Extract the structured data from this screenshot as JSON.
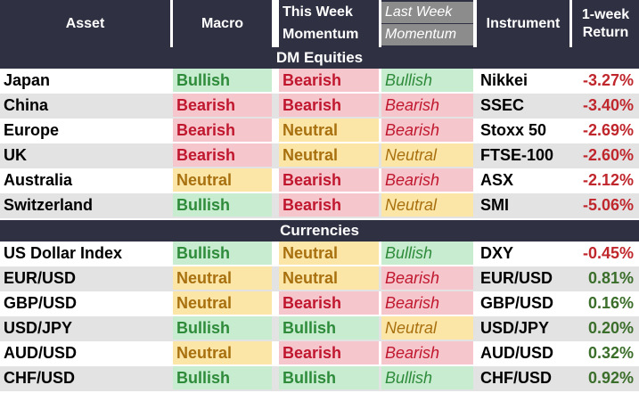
{
  "headers": {
    "asset": "Asset",
    "macro": "Macro",
    "this_week_1": "This Week",
    "this_week_2": "Momentum",
    "last_week_1": "Last Week",
    "last_week_2": "Momentum",
    "instrument": "Instrument",
    "return_1": "1-week",
    "return_2": "Return"
  },
  "sections": [
    {
      "title": "DM Equities",
      "rows": [
        {
          "asset": "Japan",
          "macro": "Bullish",
          "this_week": "Bearish",
          "last_week": "Bullish",
          "instrument": "Nikkei",
          "ret": "-3.27%"
        },
        {
          "asset": "China",
          "macro": "Bearish",
          "this_week": "Bearish",
          "last_week": "Bearish",
          "instrument": "SSEC",
          "ret": "-3.40%"
        },
        {
          "asset": "Europe",
          "macro": "Bearish",
          "this_week": "Neutral",
          "last_week": "Bearish",
          "instrument": "Stoxx 50",
          "ret": "-2.69%"
        },
        {
          "asset": "UK",
          "macro": "Bearish",
          "this_week": "Neutral",
          "last_week": "Neutral",
          "instrument": "FTSE-100",
          "ret": "-2.60%"
        },
        {
          "asset": "Australia",
          "macro": "Neutral",
          "this_week": "Bearish",
          "last_week": "Bearish",
          "instrument": "ASX",
          "ret": "-2.12%"
        },
        {
          "asset": "Switzerland",
          "macro": "Bullish",
          "this_week": "Bearish",
          "last_week": "Neutral",
          "instrument": "SMI",
          "ret": "-5.06%"
        }
      ]
    },
    {
      "title": "Currencies",
      "rows": [
        {
          "asset": "US Dollar Index",
          "macro": "Bullish",
          "this_week": "Neutral",
          "last_week": "Bullish",
          "instrument": "DXY",
          "ret": "-0.45%"
        },
        {
          "asset": "EUR/USD",
          "macro": "Neutral",
          "this_week": "Neutral",
          "last_week": "Bearish",
          "instrument": "EUR/USD",
          "ret": "0.81%"
        },
        {
          "asset": "GBP/USD",
          "macro": "Neutral",
          "this_week": "Bearish",
          "last_week": "Bearish",
          "instrument": "GBP/USD",
          "ret": "0.16%"
        },
        {
          "asset": "USD/JPY",
          "macro": "Bullish",
          "this_week": "Bullish",
          "last_week": "Neutral",
          "instrument": "USD/JPY",
          "ret": "0.20%"
        },
        {
          "asset": "AUD/USD",
          "macro": "Neutral",
          "this_week": "Bearish",
          "last_week": "Bearish",
          "instrument": "AUD/USD",
          "ret": "0.32%"
        },
        {
          "asset": "CHF/USD",
          "macro": "Bullish",
          "this_week": "Bullish",
          "last_week": "Bullish",
          "instrument": "CHF/USD",
          "ret": "0.92%"
        }
      ]
    }
  ],
  "colors": {
    "header_bg": "#2f3142",
    "bullish_bg": "#c8ecd0",
    "bullish_text": "#2e8b3a",
    "bearish_bg": "#f6c6cd",
    "bearish_text": "#c0172e",
    "neutral_bg": "#fbe6a8",
    "neutral_text": "#a8700e",
    "negative_return": "#c0272d",
    "positive_return": "#3b6e2a"
  }
}
